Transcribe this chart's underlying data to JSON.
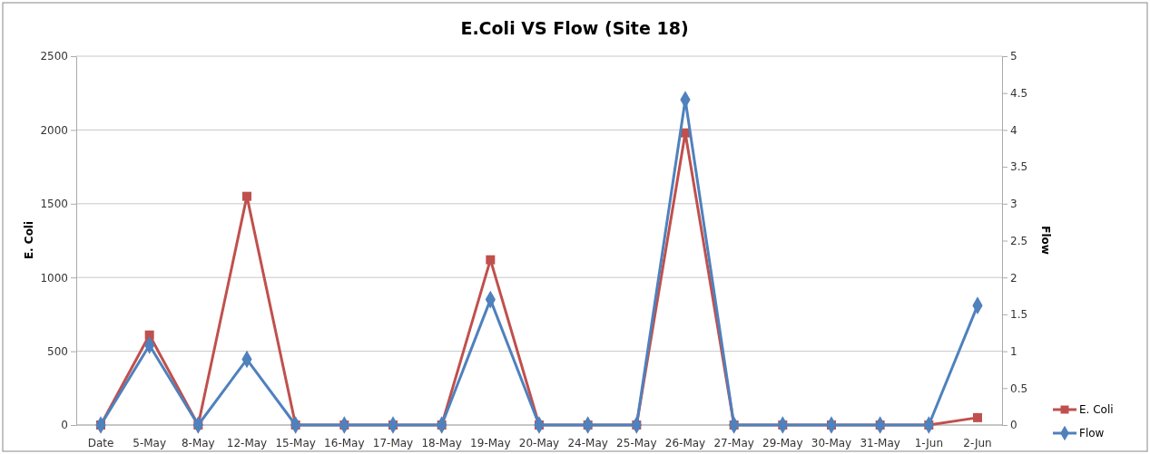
{
  "chart_data": {
    "type": "line",
    "title": "E.Coli VS Flow (Site 18)",
    "ylabel": "E. Coli",
    "y2label": "Flow",
    "categories": [
      "Date",
      "5-May",
      "8-May",
      "12-May",
      "15-May",
      "16-May",
      "17-May",
      "18-May",
      "19-May",
      "20-May",
      "24-May",
      "25-May",
      "26-May",
      "27-May",
      "29-May",
      "30-May",
      "31-May",
      "1-Jun",
      "2-Jun"
    ],
    "series": [
      {
        "name": "E. Coli",
        "color": "#c0504d",
        "marker": "square",
        "values": [
          0,
          610,
          0,
          1550,
          0,
          0,
          0,
          0,
          1120,
          0,
          0,
          0,
          1980,
          0,
          0,
          0,
          0,
          0,
          50
        ]
      },
      {
        "name": "Flow",
        "color": "#4f81bd",
        "marker": "diamond",
        "axis": "y2",
        "values": [
          0,
          1.08,
          0,
          0.89,
          0,
          0,
          0,
          0,
          1.7,
          0,
          0,
          0,
          4.41,
          0,
          0,
          0,
          0,
          0,
          1.62
        ]
      }
    ],
    "ylim": [
      0,
      2500
    ],
    "yticks": [
      0,
      500,
      1000,
      1500,
      2000,
      2500
    ],
    "y2lim": [
      0,
      5
    ],
    "y2ticks": [
      0,
      0.5,
      1,
      1.5,
      2,
      2.5,
      3,
      3.5,
      4,
      4.5,
      5
    ],
    "grid": "y",
    "legend": "bottom right"
  }
}
